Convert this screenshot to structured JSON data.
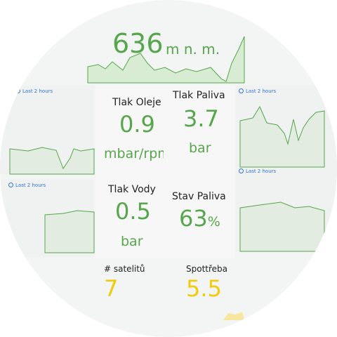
{
  "altitude": {
    "value": "636",
    "unit": "m n. m."
  },
  "time_ranges": [
    "Last 2 hours",
    "Last 2 hours",
    "Last 2 hours",
    "Last 2 hours"
  ],
  "panels": [
    {
      "title": "Tlak Oleje",
      "value": "0.9",
      "unit": "mbar/rpm"
    },
    {
      "title": "Tlak Paliva",
      "value": "3.7",
      "unit": "bar"
    },
    {
      "title": "Tlak Vody",
      "value": "0.5",
      "unit": "bar"
    },
    {
      "title": "Stav Paliva",
      "value": "63",
      "unit": "%"
    },
    {
      "title": "# satelitů",
      "value": "7"
    },
    {
      "title": "Spottřeba",
      "value": "5.5"
    }
  ]
}
